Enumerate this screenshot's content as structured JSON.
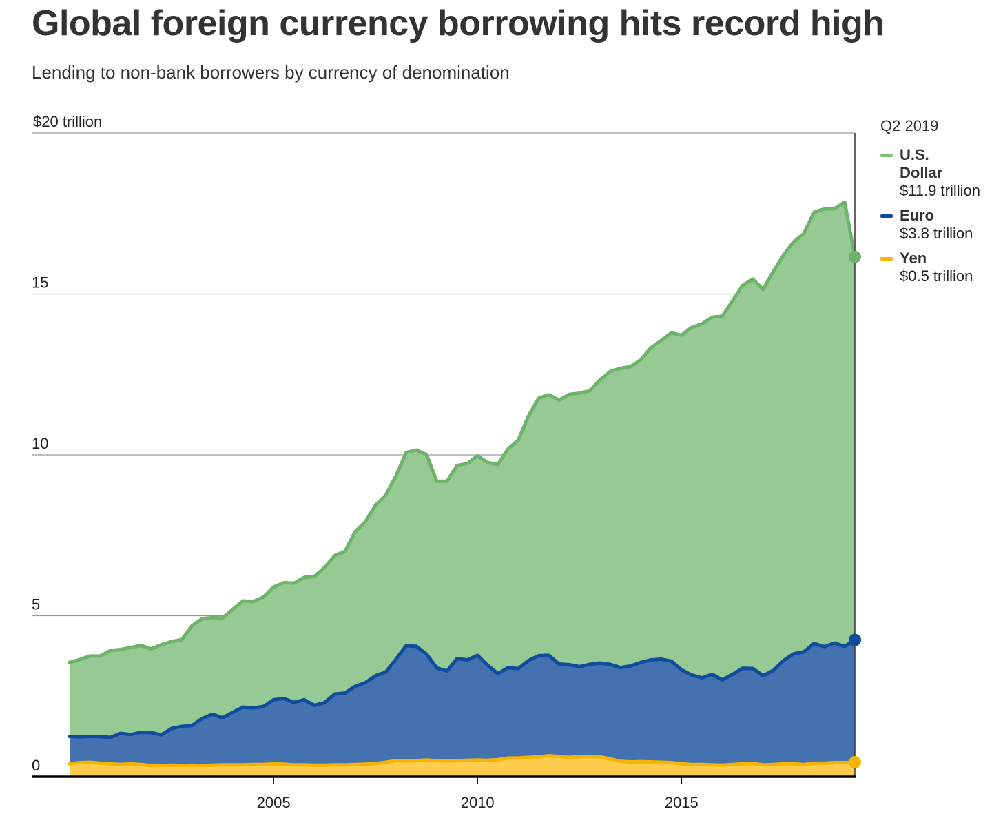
{
  "chart_data": {
    "type": "area",
    "stacked": true,
    "title": "Global foreign currency borrowing hits record high",
    "subtitle": "Lending to non-bank borrowers by currency of denomination",
    "y_unit_label": "$20 trillion",
    "ylim": [
      0,
      20
    ],
    "y_ticks": [
      {
        "value": 0,
        "label": "0"
      },
      {
        "value": 5,
        "label": "5"
      },
      {
        "value": 10,
        "label": "10"
      },
      {
        "value": 15,
        "label": "15"
      },
      {
        "value": 20,
        "label": "$20 trillion"
      }
    ],
    "xlim": [
      2000.0,
      2019.25
    ],
    "x_ticks": [
      {
        "value": 2005,
        "label": "2005"
      },
      {
        "value": 2010,
        "label": "2010"
      },
      {
        "value": 2015,
        "label": "2015"
      }
    ],
    "grid": true,
    "legend_position": "right",
    "legend_period": "Q2 2019",
    "x": [
      2000.0,
      2000.25,
      2000.5,
      2000.75,
      2001.0,
      2001.25,
      2001.5,
      2001.75,
      2002.0,
      2002.25,
      2002.5,
      2002.75,
      2003.0,
      2003.25,
      2003.5,
      2003.75,
      2004.0,
      2004.25,
      2004.5,
      2004.75,
      2005.0,
      2005.25,
      2005.5,
      2005.75,
      2006.0,
      2006.25,
      2006.5,
      2006.75,
      2007.0,
      2007.25,
      2007.5,
      2007.75,
      2008.0,
      2008.25,
      2008.5,
      2008.75,
      2009.0,
      2009.25,
      2009.5,
      2009.75,
      2010.0,
      2010.25,
      2010.5,
      2010.75,
      2011.0,
      2011.25,
      2011.5,
      2011.75,
      2012.0,
      2012.25,
      2012.5,
      2012.75,
      2013.0,
      2013.25,
      2013.5,
      2013.75,
      2014.0,
      2014.25,
      2014.5,
      2014.75,
      2015.0,
      2015.25,
      2015.5,
      2015.75,
      2016.0,
      2016.25,
      2016.5,
      2016.75,
      2017.0,
      2017.25,
      2017.5,
      2017.75,
      2018.0,
      2018.25,
      2018.5,
      2018.75,
      2019.0,
      2019.25
    ],
    "series": [
      {
        "name": "Yen",
        "label": "Yen",
        "value_label": "$0.5 trillion",
        "color": "#f5b400",
        "fill": "#ffcd4d",
        "values": [
          0.4,
          0.44,
          0.45,
          0.42,
          0.4,
          0.38,
          0.4,
          0.38,
          0.35,
          0.35,
          0.36,
          0.35,
          0.36,
          0.35,
          0.36,
          0.37,
          0.37,
          0.37,
          0.38,
          0.38,
          0.4,
          0.39,
          0.37,
          0.37,
          0.36,
          0.36,
          0.37,
          0.37,
          0.38,
          0.39,
          0.41,
          0.45,
          0.5,
          0.49,
          0.5,
          0.52,
          0.5,
          0.5,
          0.5,
          0.51,
          0.52,
          0.51,
          0.53,
          0.58,
          0.58,
          0.6,
          0.62,
          0.65,
          0.63,
          0.6,
          0.62,
          0.63,
          0.62,
          0.55,
          0.48,
          0.46,
          0.47,
          0.46,
          0.45,
          0.44,
          0.4,
          0.38,
          0.38,
          0.37,
          0.36,
          0.38,
          0.4,
          0.41,
          0.37,
          0.38,
          0.4,
          0.4,
          0.38,
          0.42,
          0.42,
          0.44,
          0.44,
          0.45
        ]
      },
      {
        "name": "Euro",
        "label": "Euro",
        "value_label": "$3.8 trillion",
        "color": "#0f4c9c",
        "fill": "#4472b0",
        "values": [
          0.85,
          0.8,
          0.8,
          0.83,
          0.82,
          0.97,
          0.91,
          1.0,
          1.02,
          0.95,
          1.14,
          1.21,
          1.23,
          1.46,
          1.58,
          1.46,
          1.63,
          1.79,
          1.76,
          1.8,
          1.99,
          2.04,
          1.94,
          2.02,
          1.86,
          1.94,
          2.2,
          2.23,
          2.43,
          2.53,
          2.73,
          2.8,
          3.15,
          3.58,
          3.55,
          3.29,
          2.88,
          2.78,
          3.17,
          3.12,
          3.25,
          2.95,
          2.67,
          2.81,
          2.78,
          3.01,
          3.14,
          3.12,
          2.87,
          2.88,
          2.8,
          2.86,
          2.91,
          2.94,
          2.91,
          2.98,
          3.08,
          3.17,
          3.2,
          3.15,
          2.92,
          2.78,
          2.69,
          2.81,
          2.65,
          2.8,
          2.97,
          2.95,
          2.77,
          2.92,
          3.21,
          3.42,
          3.5,
          3.72,
          3.62,
          3.71,
          3.61,
          3.8
        ]
      },
      {
        "name": "U.S. Dollar",
        "label": "U.S. Dollar",
        "value_label": "$11.9 trillion",
        "color": "#6db36a",
        "fill": "#96c994",
        "values": [
          2.3,
          2.4,
          2.5,
          2.5,
          2.7,
          2.6,
          2.7,
          2.7,
          2.6,
          2.8,
          2.7,
          2.7,
          3.1,
          3.1,
          3.0,
          3.1,
          3.2,
          3.3,
          3.3,
          3.4,
          3.5,
          3.6,
          3.7,
          3.8,
          4.0,
          4.2,
          4.3,
          4.4,
          4.8,
          5.0,
          5.3,
          5.5,
          5.7,
          6.0,
          6.1,
          6.2,
          5.8,
          5.9,
          6.0,
          6.1,
          6.2,
          6.3,
          6.5,
          6.8,
          7.1,
          7.6,
          8.0,
          8.1,
          8.2,
          8.4,
          8.5,
          8.5,
          8.8,
          9.1,
          9.3,
          9.3,
          9.4,
          9.7,
          9.9,
          10.2,
          10.4,
          10.8,
          11.0,
          11.1,
          11.3,
          11.6,
          11.9,
          12.1,
          12.0,
          12.4,
          12.6,
          12.8,
          13.0,
          13.4,
          13.6,
          13.5,
          13.8,
          11.9
        ]
      }
    ]
  }
}
